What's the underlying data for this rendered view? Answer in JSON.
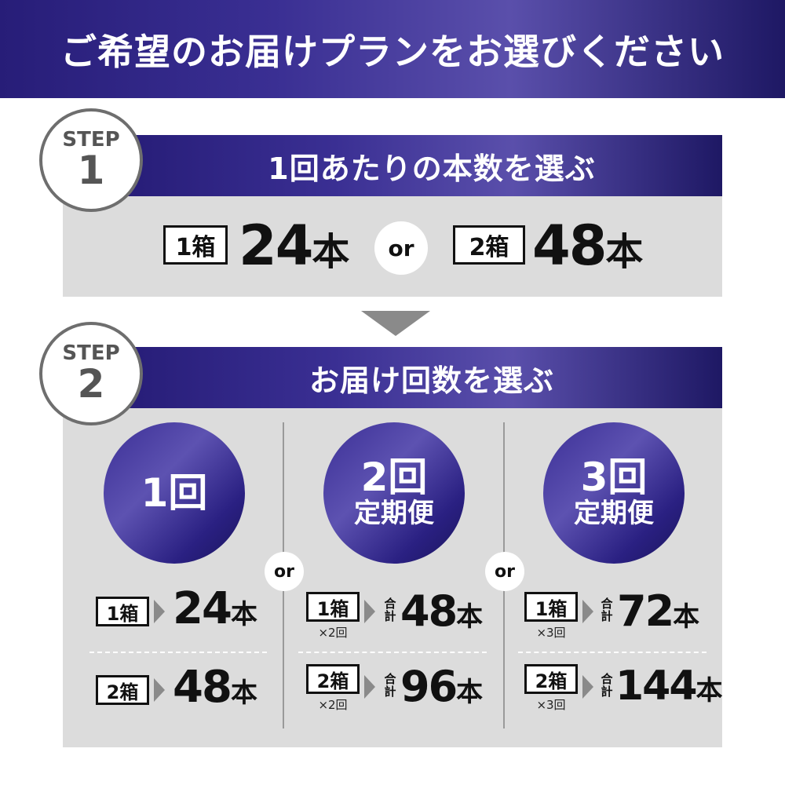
{
  "header": {
    "title": "ご希望のお届けプランをお選びください"
  },
  "step1": {
    "badge_label": "STEP",
    "badge_number": "1",
    "title": "1回あたりの本数を選ぶ",
    "option_a": {
      "box": "1箱",
      "count": "24",
      "unit": "本"
    },
    "or": "or",
    "option_b": {
      "box": "2箱",
      "count": "48",
      "unit": "本"
    }
  },
  "step2": {
    "badge_label": "STEP",
    "badge_number": "2",
    "title": "お届け回数を選ぶ",
    "or": "or",
    "gokei": "合計",
    "plans": [
      {
        "main": "1回",
        "sub": "",
        "rows": [
          {
            "box": "1箱",
            "times": "",
            "count": "24",
            "unit": "本"
          },
          {
            "box": "2箱",
            "times": "",
            "count": "48",
            "unit": "本"
          }
        ]
      },
      {
        "main": "2回",
        "sub": "定期便",
        "rows": [
          {
            "box": "1箱",
            "times": "×2回",
            "count": "48",
            "unit": "本"
          },
          {
            "box": "2箱",
            "times": "×2回",
            "count": "96",
            "unit": "本"
          }
        ]
      },
      {
        "main": "3回",
        "sub": "定期便",
        "rows": [
          {
            "box": "1箱",
            "times": "×3回",
            "count": "72",
            "unit": "本"
          },
          {
            "box": "2箱",
            "times": "×3回",
            "count": "144",
            "unit": "本"
          }
        ]
      }
    ]
  },
  "colors": {
    "brand_dark": "#271d78",
    "brand_light": "#5a4fab",
    "panel_gray": "#dcdcdc",
    "badge_border": "#6e6e6e"
  }
}
